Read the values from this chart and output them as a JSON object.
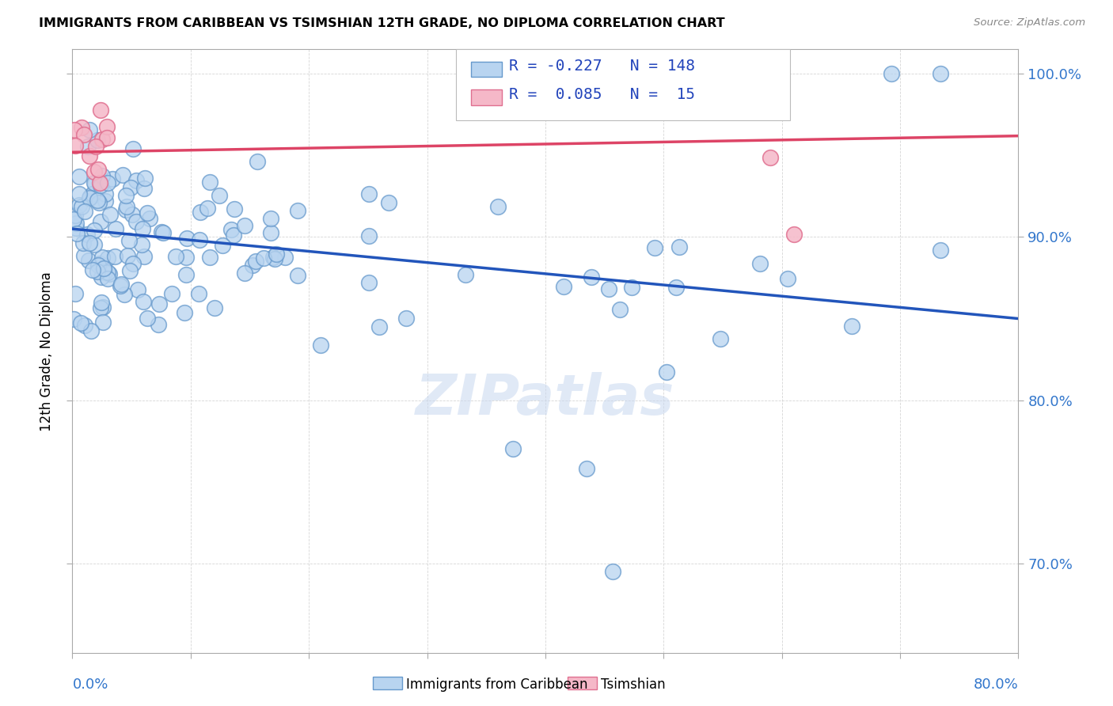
{
  "title": "IMMIGRANTS FROM CARIBBEAN VS TSIMSHIAN 12TH GRADE, NO DIPLOMA CORRELATION CHART",
  "source": "Source: ZipAtlas.com",
  "ylabel": "12th Grade, No Diploma",
  "xmin": 0.0,
  "xmax": 0.8,
  "ymin": 0.645,
  "ymax": 1.015,
  "yticks": [
    0.7,
    0.8,
    0.9,
    1.0
  ],
  "ytick_labels": [
    "70.0%",
    "80.0%",
    "90.0%",
    "100.0%"
  ],
  "xtick_labels": [
    "0.0%",
    "",
    "",
    "",
    "",
    "",
    "",
    "",
    "80.0%"
  ],
  "blue_R": -0.227,
  "blue_N": 148,
  "pink_R": 0.085,
  "pink_N": 15,
  "blue_color": "#b8d4f0",
  "blue_edge": "#6699cc",
  "pink_color": "#f5b8c8",
  "pink_edge": "#e07090",
  "blue_line_color": "#2255bb",
  "pink_line_color": "#dd4466",
  "legend_blue_label": "Immigrants from Caribbean",
  "legend_pink_label": "Tsimshian",
  "watermark": "ZIPatlas",
  "blue_line_x0": 0.0,
  "blue_line_y0": 0.905,
  "blue_line_x1": 0.8,
  "blue_line_y1": 0.85,
  "pink_line_x0": 0.0,
  "pink_line_y0": 0.952,
  "pink_line_x1": 0.8,
  "pink_line_y1": 0.962
}
